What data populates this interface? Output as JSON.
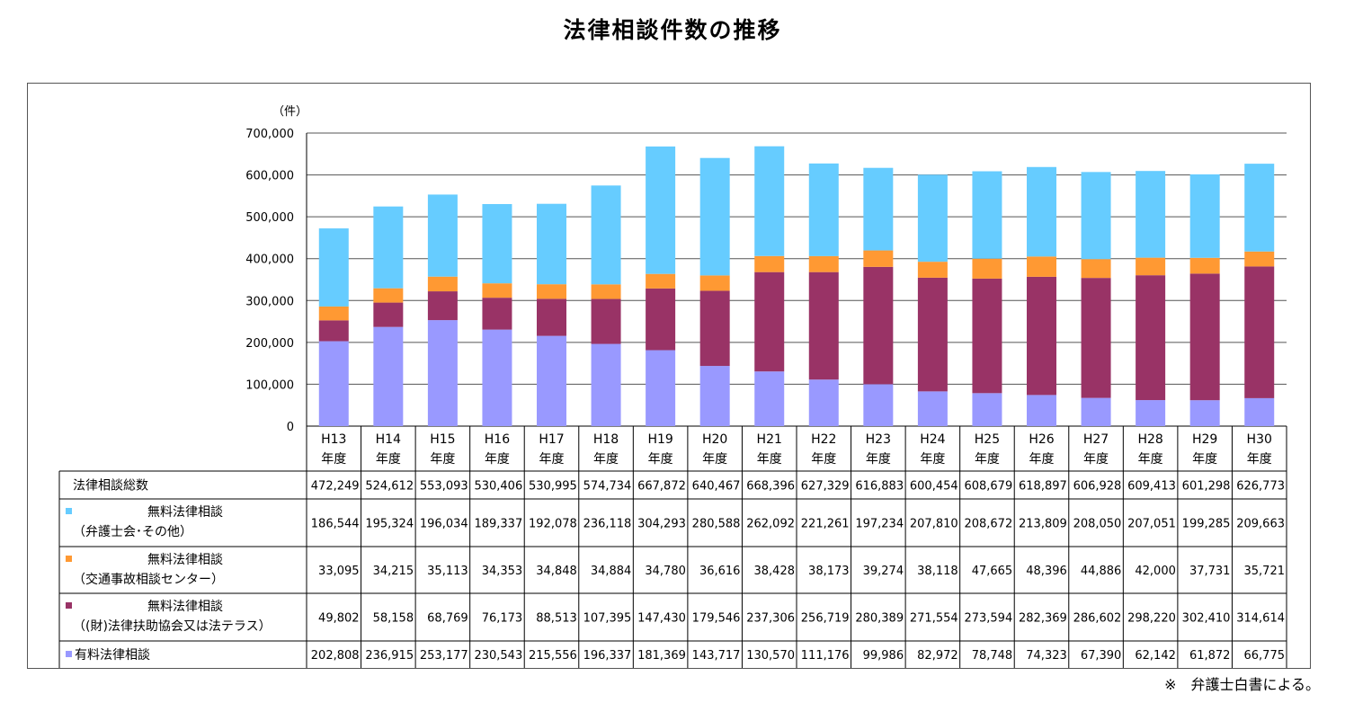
{
  "title": "法律相談件数の推移",
  "source_note": "※　弁護士白書による。",
  "colors": {
    "free_bengoshi": "#66CCFF",
    "free_koutsu": "#FF9933",
    "free_houterasu": "#993366",
    "paid": "#9999FF"
  },
  "chart_data": {
    "type": "bar",
    "stacked": true,
    "title": "法律相談件数の推移",
    "ylabel": "（件）",
    "ylim": [
      0,
      700000
    ],
    "yticks": [
      "0",
      "100,000",
      "200,000",
      "300,000",
      "400,000",
      "500,000",
      "600,000",
      "700,000"
    ],
    "grid": true,
    "categories": [
      [
        "H13",
        "年度"
      ],
      [
        "H14",
        "年度"
      ],
      [
        "H15",
        "年度"
      ],
      [
        "H16",
        "年度"
      ],
      [
        "H17",
        "年度"
      ],
      [
        "H18",
        "年度"
      ],
      [
        "H19",
        "年度"
      ],
      [
        "H20",
        "年度"
      ],
      [
        "H21",
        "年度"
      ],
      [
        "H22",
        "年度"
      ],
      [
        "H23",
        "年度"
      ],
      [
        "H24",
        "年度"
      ],
      [
        "H25",
        "年度"
      ],
      [
        "H26",
        "年度"
      ],
      [
        "H27",
        "年度"
      ],
      [
        "H28",
        "年度"
      ],
      [
        "H29",
        "年度"
      ],
      [
        "H30",
        "年度"
      ]
    ],
    "totals_label": "法律相談総数",
    "totals": [
      "472,249",
      "524,612",
      "553,093",
      "530,406",
      "530,995",
      "574,734",
      "667,872",
      "640,467",
      "668,396",
      "627,329",
      "616,883",
      "600,454",
      "608,679",
      "618,897",
      "606,928",
      "609,413",
      "601,298",
      "626,773"
    ],
    "series": [
      {
        "key": "paid",
        "name": [
          "有料法律相談"
        ],
        "values": [
          202808,
          236915,
          253177,
          230543,
          215556,
          196337,
          181369,
          143717,
          130570,
          111176,
          99986,
          82972,
          78748,
          74323,
          67390,
          62142,
          61872,
          66775
        ],
        "labels": [
          "202,808",
          "236,915",
          "253,177",
          "230,543",
          "215,556",
          "196,337",
          "181,369",
          "143,717",
          "130,570",
          "111,176",
          "99,986",
          "82,972",
          "78,748",
          "74,323",
          "67,390",
          "62,142",
          "61,872",
          "66,775"
        ]
      },
      {
        "key": "free_houterasu",
        "name": [
          "無料法律相談",
          "（(財)法律扶助協会又は法テラス）"
        ],
        "values": [
          49802,
          58158,
          68769,
          76173,
          88513,
          107395,
          147430,
          179546,
          237306,
          256719,
          280389,
          271554,
          273594,
          282369,
          286602,
          298220,
          302410,
          314614
        ],
        "labels": [
          "49,802",
          "58,158",
          "68,769",
          "76,173",
          "88,513",
          "107,395",
          "147,430",
          "179,546",
          "237,306",
          "256,719",
          "280,389",
          "271,554",
          "273,594",
          "282,369",
          "286,602",
          "298,220",
          "302,410",
          "314,614"
        ]
      },
      {
        "key": "free_koutsu",
        "name": [
          "無料法律相談",
          "（交通事故相談センター）"
        ],
        "values": [
          33095,
          34215,
          35113,
          34353,
          34848,
          34884,
          34780,
          36616,
          38428,
          38173,
          39274,
          38118,
          47665,
          48396,
          44886,
          42000,
          37731,
          35721
        ],
        "labels": [
          "33,095",
          "34,215",
          "35,113",
          "34,353",
          "34,848",
          "34,884",
          "34,780",
          "36,616",
          "38,428",
          "38,173",
          "39,274",
          "38,118",
          "47,665",
          "48,396",
          "44,886",
          "42,000",
          "37,731",
          "35,721"
        ]
      },
      {
        "key": "free_bengoshi",
        "name": [
          "無料法律相談",
          "（弁護士会･その他）"
        ],
        "values": [
          186544,
          195324,
          196034,
          189337,
          192078,
          236118,
          304293,
          280588,
          262092,
          221261,
          197234,
          207810,
          208672,
          213809,
          208050,
          207051,
          199285,
          209663
        ],
        "labels": [
          "186,544",
          "195,324",
          "196,034",
          "189,337",
          "192,078",
          "236,118",
          "304,293",
          "280,588",
          "262,092",
          "221,261",
          "197,234",
          "207,810",
          "208,672",
          "213,809",
          "208,050",
          "207,051",
          "199,285",
          "209,663"
        ]
      }
    ],
    "table_row_order": [
      "free_bengoshi",
      "free_koutsu",
      "free_houterasu",
      "paid"
    ]
  }
}
